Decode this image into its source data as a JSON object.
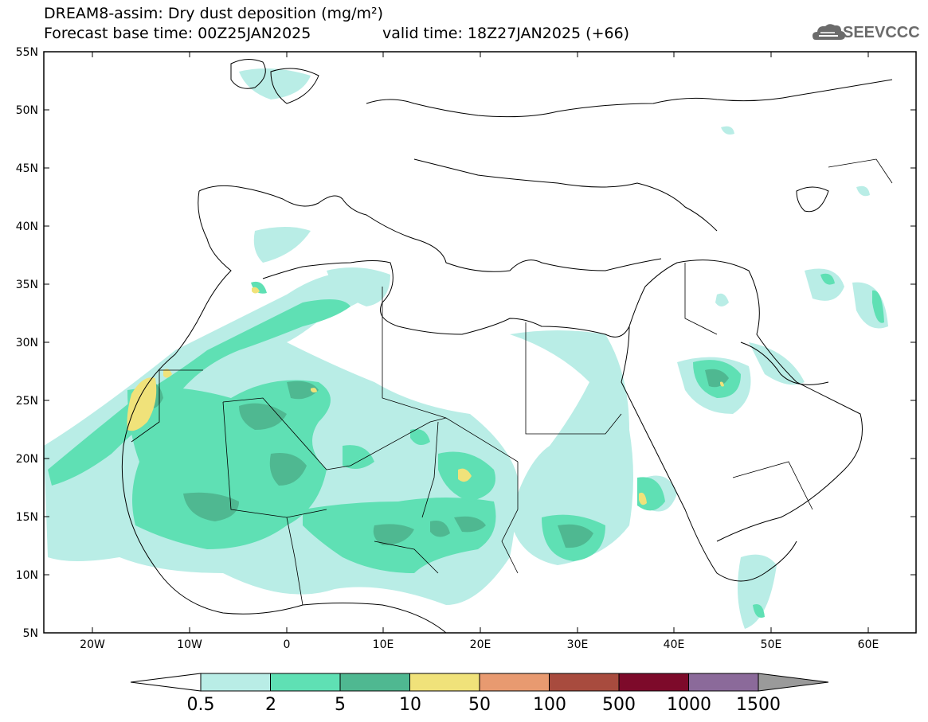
{
  "header": {
    "title": "DREAM8-assim: Dry dust deposition (mg/m²)",
    "base_time": "Forecast base time: 00Z25JAN2025",
    "valid_time": "valid time: 18Z27JAN2025 (+66)"
  },
  "logo": {
    "text": "SEEVCCC",
    "icon": "cloud-icon"
  },
  "axes": {
    "lat_labels": [
      "55N",
      "50N",
      "45N",
      "40N",
      "35N",
      "30N",
      "25N",
      "20N",
      "15N",
      "10N",
      "5N"
    ],
    "lon_labels": [
      "20W",
      "10W",
      "0",
      "10E",
      "20E",
      "30E",
      "40E",
      "50E",
      "60E"
    ]
  },
  "colorbar": {
    "labels": [
      "0.5",
      "2",
      "5",
      "10",
      "50",
      "100",
      "500",
      "1000",
      "1500"
    ],
    "colors": [
      "#b9ede6",
      "#5fe0b4",
      "#4fb891",
      "#f0e27a",
      "#e89a70",
      "#a84b3e",
      "#7d0a2a",
      "#8b6a9a",
      "#9a9a9a"
    ]
  },
  "colors": {
    "level1": "#b9ede6",
    "level2": "#5fe0b4",
    "level3": "#4fb891",
    "level4": "#f0e27a"
  }
}
